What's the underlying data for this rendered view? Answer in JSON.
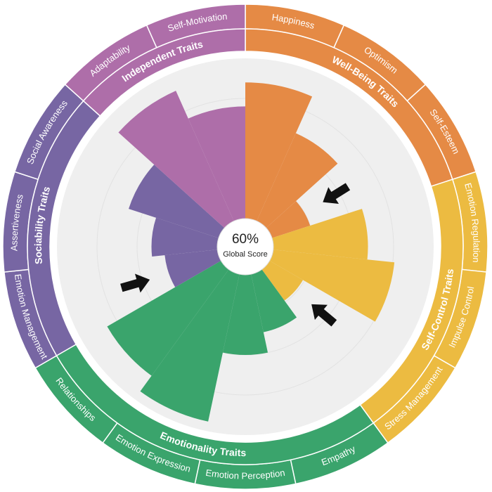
{
  "chart_data": {
    "type": "polar_bar",
    "center_label": "60%",
    "center_caption": "Global Score",
    "ylim": [
      0,
      100
    ],
    "series": [
      {
        "name": "Well-Being Traits",
        "color": "#e58a45",
        "categories": [
          "Happiness",
          "Optimism",
          "Self-Esteem"
        ],
        "values": [
          85,
          60,
          25
        ]
      },
      {
        "name": "Self-Control Traits",
        "color": "#ecbb41",
        "categories": [
          "Emotion Regulation",
          "Impulse Control",
          "Stress Management"
        ],
        "values": [
          59,
          76,
          24
        ]
      },
      {
        "name": "Emotionality Traits",
        "color": "#3aa46c",
        "categories": [
          "Empathy",
          "Emotion Perception",
          "Emotion Expression",
          "Relationships"
        ],
        "values": [
          37,
          50,
          94,
          82
        ]
      },
      {
        "name": "Sociability Traits",
        "color": "#7766a3",
        "categories": [
          "Emotion Management",
          "Assertiveness",
          "Social Awareness"
        ],
        "values": [
          33,
          41,
          59
        ]
      },
      {
        "name": "Independent Traits",
        "color": "#ae6ea9",
        "categories": [
          "Adaptability",
          "Self-Motivation"
        ],
        "values": [
          89,
          70
        ]
      }
    ]
  }
}
